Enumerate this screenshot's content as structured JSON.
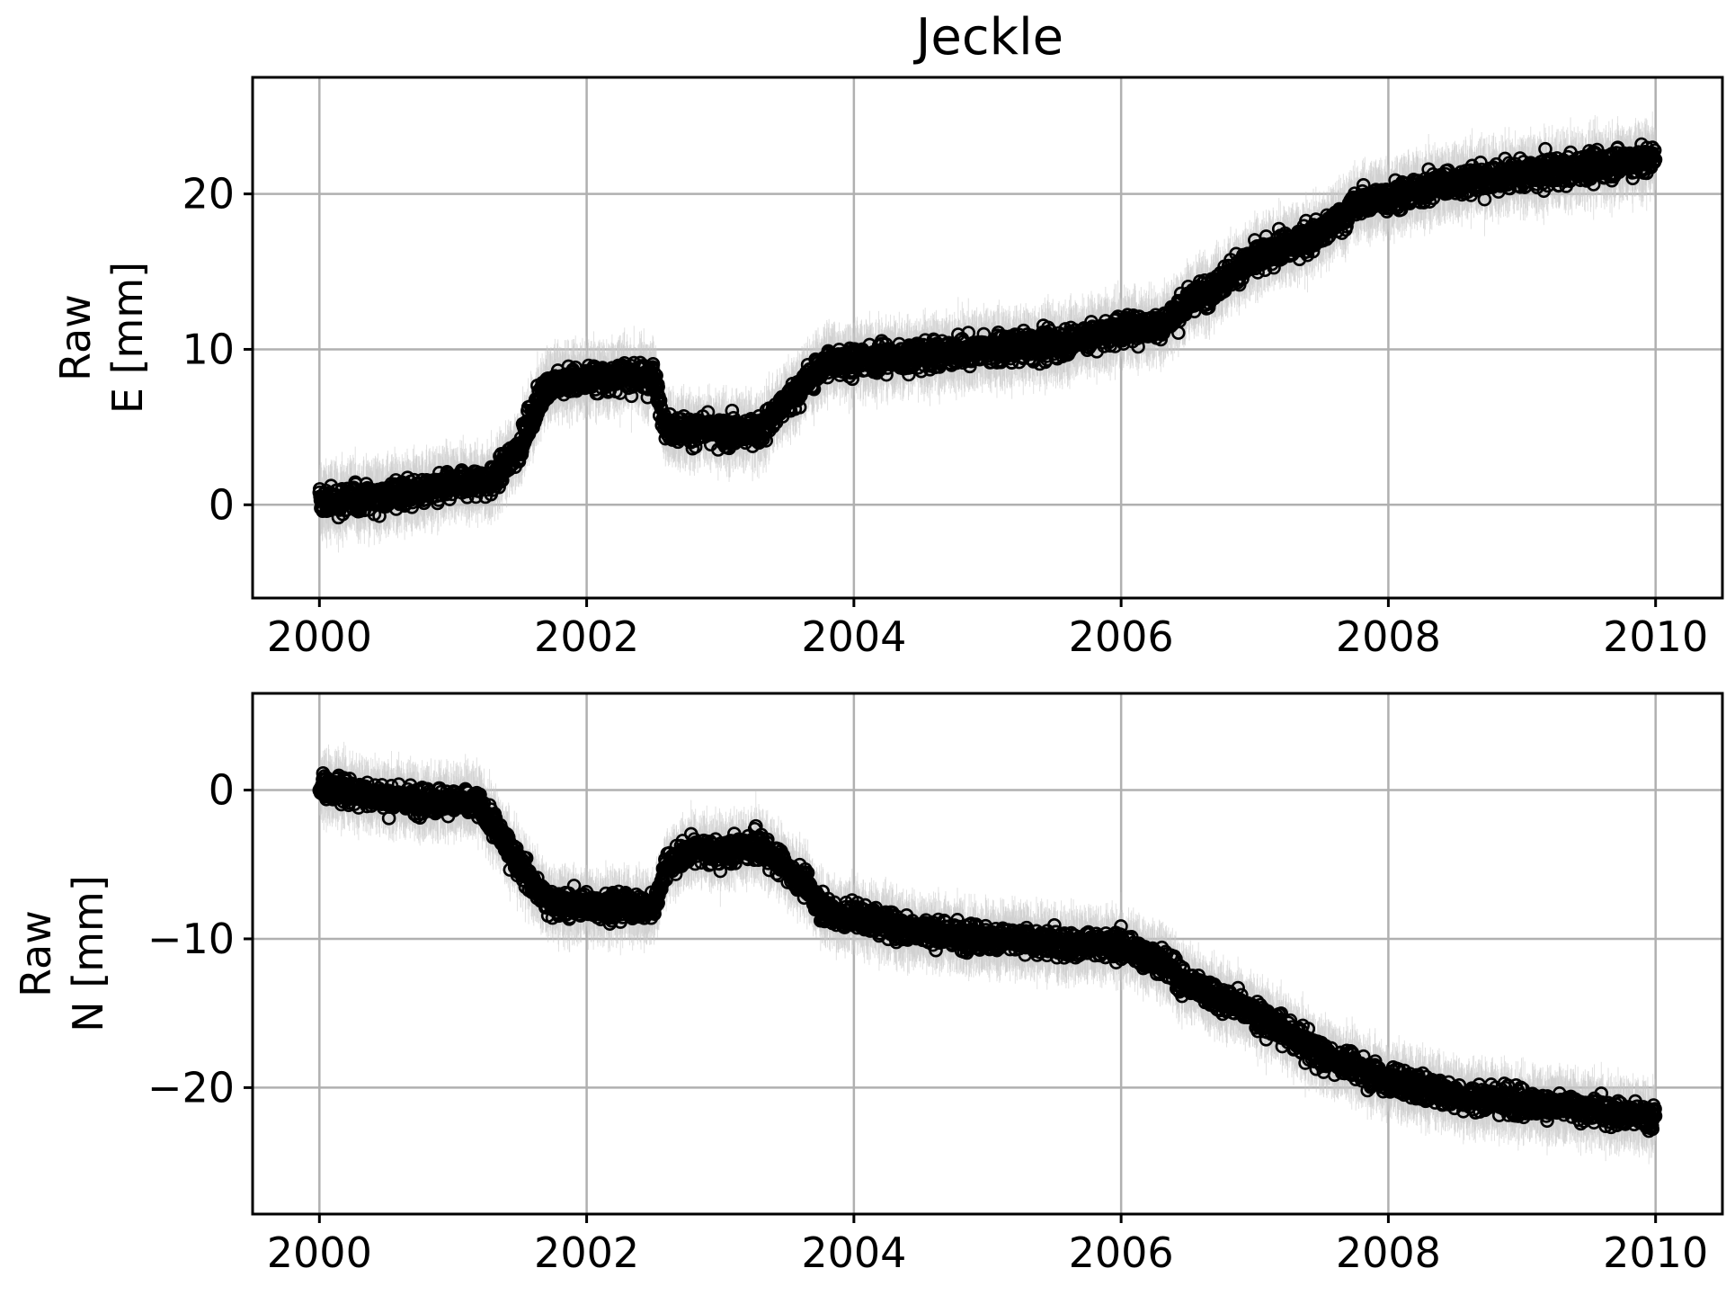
{
  "chart_data": [
    {
      "type": "scatter",
      "title": "Jeckle",
      "ylabel_lines": [
        "Raw",
        "E [mm]"
      ],
      "xlabel": "",
      "xlim": [
        1999.5,
        2010.5
      ],
      "ylim": [
        -6,
        27.5
      ],
      "xticks": [
        2000,
        2002,
        2004,
        2006,
        2008,
        2010
      ],
      "xtick_labels": [
        "2000",
        "2002",
        "2004",
        "2006",
        "2008",
        "2010"
      ],
      "yticks": [
        0,
        10,
        20
      ],
      "ytick_labels": [
        "0",
        "10",
        "20"
      ],
      "grid": true,
      "legend": false,
      "marker_color": "#000000",
      "errorbar_color": "#c8c8c8",
      "x": [
        2000.0,
        2000.5,
        2001.0,
        2001.3,
        2001.5,
        2001.7,
        2002.0,
        2002.3,
        2002.5,
        2002.6,
        2003.0,
        2003.3,
        2003.6,
        2003.8,
        2004.0,
        2004.5,
        2005.0,
        2005.5,
        2006.0,
        2006.3,
        2006.5,
        2007.0,
        2007.5,
        2007.8,
        2008.0,
        2008.5,
        2009.0,
        2009.5,
        2010.0
      ],
      "y": [
        0.2,
        0.6,
        1.2,
        1.5,
        3.8,
        7.8,
        8.1,
        8.3,
        8.2,
        5.0,
        4.6,
        4.8,
        7.5,
        9.2,
        9.3,
        9.6,
        10.0,
        10.3,
        11.3,
        11.5,
        13.0,
        15.8,
        17.5,
        19.5,
        19.8,
        20.8,
        21.2,
        21.7,
        22.3
      ],
      "spread": [
        1.8,
        1.8,
        1.8,
        1.8,
        1.8,
        1.8,
        1.8,
        1.8,
        1.8,
        1.8,
        1.8,
        1.8,
        1.8,
        1.8,
        1.8,
        1.8,
        1.8,
        1.8,
        1.8,
        1.8,
        1.8,
        1.8,
        1.8,
        1.8,
        1.8,
        1.8,
        1.8,
        1.8,
        1.8
      ]
    },
    {
      "type": "scatter",
      "title": "",
      "ylabel_lines": [
        "Raw",
        "N [mm]"
      ],
      "xlabel": "",
      "xlim": [
        1999.5,
        2010.5
      ],
      "ylim": [
        -28.5,
        6.5
      ],
      "xticks": [
        2000,
        2002,
        2004,
        2006,
        2008,
        2010
      ],
      "xtick_labels": [
        "2000",
        "2002",
        "2004",
        "2006",
        "2008",
        "2010"
      ],
      "yticks": [
        0,
        -10,
        -20
      ],
      "ytick_labels": [
        "0",
        "−10",
        "−20"
      ],
      "grid": true,
      "legend": false,
      "marker_color": "#000000",
      "errorbar_color": "#c8c8c8",
      "x": [
        2000.0,
        2000.5,
        2001.0,
        2001.2,
        2001.5,
        2001.7,
        2002.0,
        2002.3,
        2002.5,
        2002.6,
        2002.8,
        2003.0,
        2003.3,
        2003.6,
        2003.8,
        2004.0,
        2004.5,
        2005.0,
        2005.5,
        2006.0,
        2006.3,
        2006.5,
        2007.0,
        2007.5,
        2008.0,
        2008.5,
        2009.0,
        2009.5,
        2010.0
      ],
      "y": [
        0.3,
        -0.5,
        -0.8,
        -1.0,
        -5.0,
        -7.5,
        -7.8,
        -7.8,
        -8.0,
        -5.0,
        -4.0,
        -4.2,
        -3.8,
        -6.0,
        -8.3,
        -8.5,
        -9.5,
        -10.0,
        -10.3,
        -10.5,
        -11.5,
        -13.0,
        -15.0,
        -17.8,
        -19.5,
        -20.5,
        -21.0,
        -21.5,
        -22.0
      ],
      "spread": [
        1.8,
        1.8,
        1.8,
        1.8,
        1.8,
        1.8,
        1.8,
        1.8,
        1.8,
        1.8,
        1.8,
        1.8,
        1.8,
        1.8,
        1.8,
        1.8,
        1.8,
        1.8,
        1.8,
        1.8,
        1.8,
        1.8,
        1.8,
        1.8,
        1.8,
        1.8,
        1.8,
        1.8,
        1.8
      ]
    }
  ]
}
